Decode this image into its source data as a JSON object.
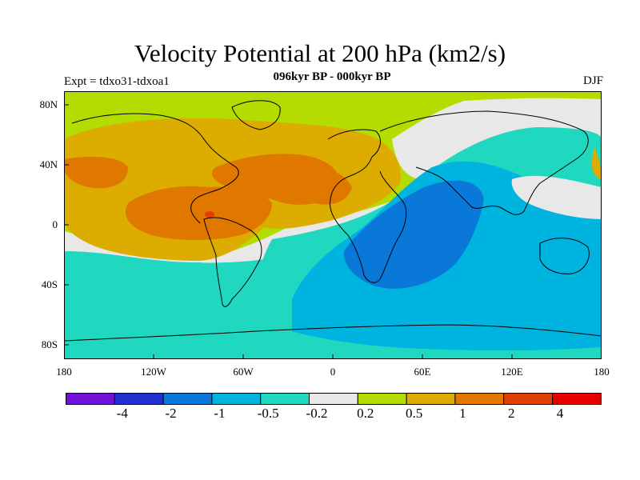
{
  "title": "Velocity Potential at 200 hPa (km2/s)",
  "subtitle": "096kyr BP - 000kyr BP",
  "experiment_label": "Expt = tdxo31-tdxoa1",
  "season": "DJF",
  "lat_ticks": [
    "80N",
    "40N",
    "0",
    "40S",
    "80S"
  ],
  "lon_ticks": [
    "180",
    "120W",
    "60W",
    "0",
    "60E",
    "120E",
    "180"
  ],
  "colorbar": {
    "labels": [
      "-4",
      "-2",
      "-1",
      "-0.5",
      "-0.2",
      "0.2",
      "0.5",
      "1",
      "2",
      "4"
    ],
    "colors": [
      "#7010d8",
      "#2030d0",
      "#0a78d8",
      "#00b4e0",
      "#20d8c0",
      "#e8e8e8",
      "#b4dc00",
      "#ddac00",
      "#e07800",
      "#e04000",
      "#e80000"
    ]
  }
}
